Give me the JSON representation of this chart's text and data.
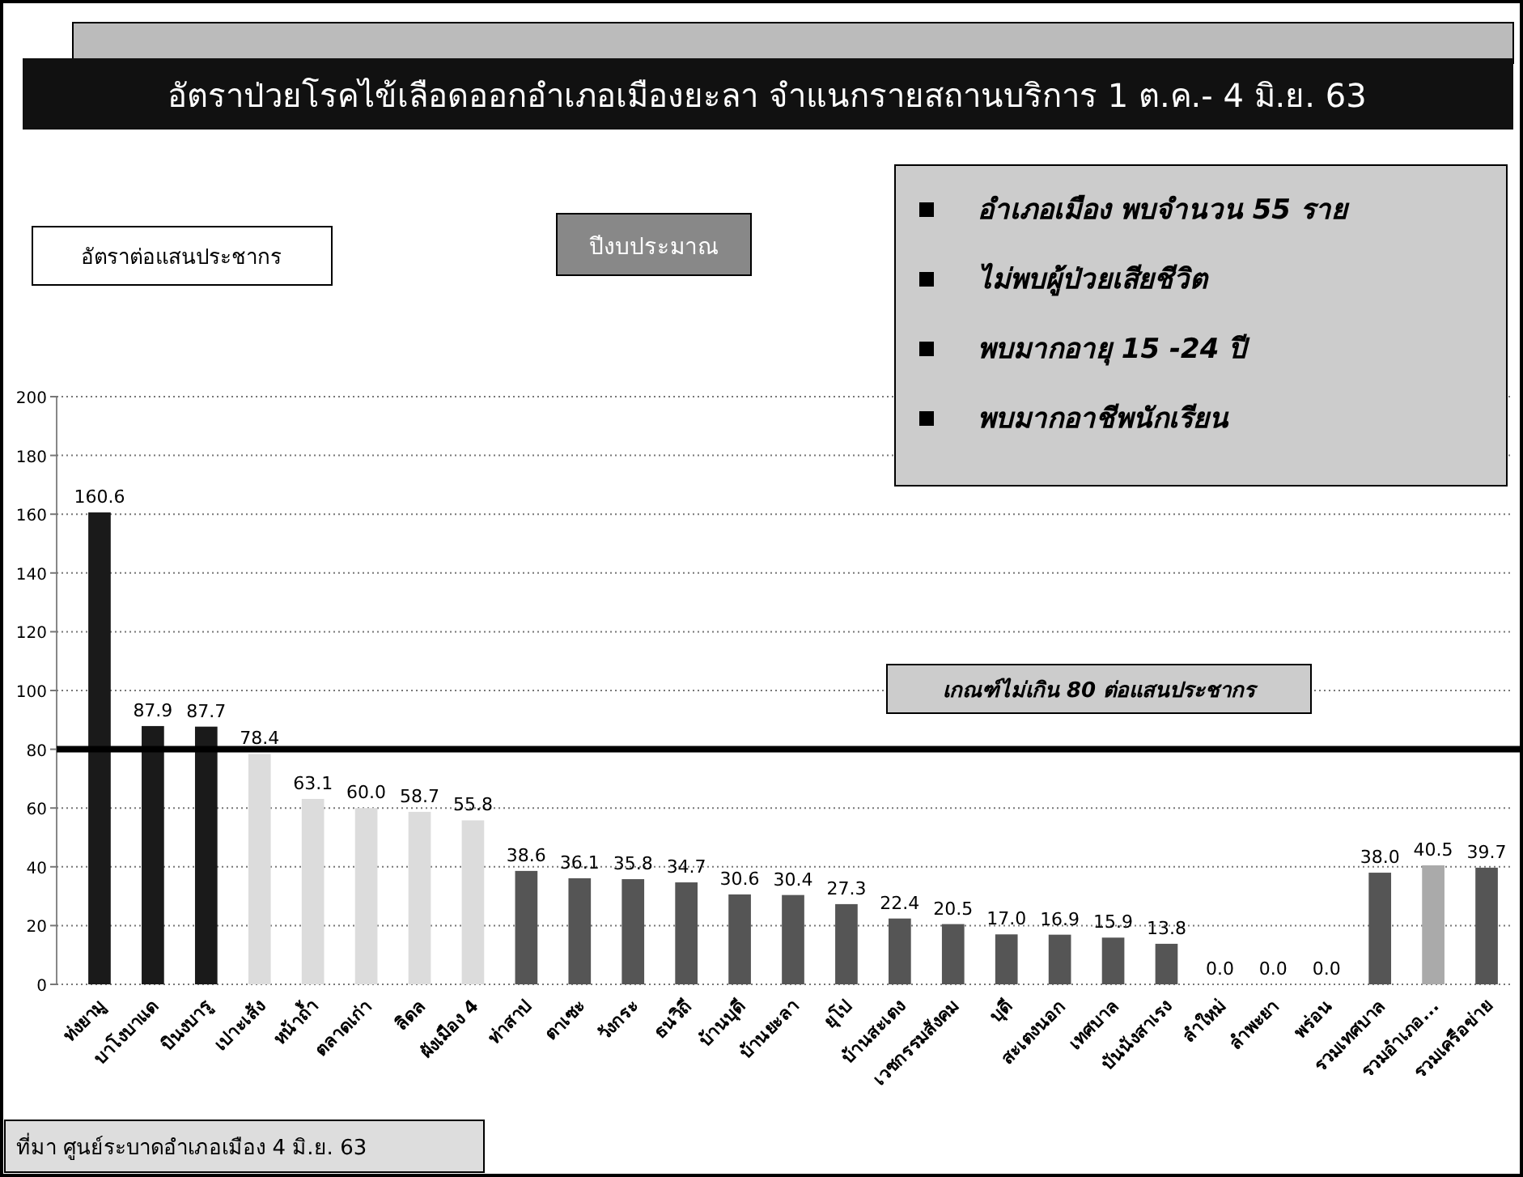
{
  "chart_data": {
    "type": "bar",
    "title": "อัตราป่วยโรคไข้เลือดออกอำเภอเมืองยะลา จำแนกรายสถานบริการ 1 ต.ค.- 4 มิ.ย. 63",
    "categories": [
      "ท่งยามู",
      "บาโงบาแด",
      "บินงบารู",
      "เปาะเส้ง",
      "หน้าถ้ำ",
      "ตลาดเก่า",
      "ลิดล",
      "ผังเมือง 4",
      "ท่าสาป",
      "ตาเซะ",
      "วังกระ",
      "ธนวิถี",
      "บ้านบุดี",
      "บ้านยะลา",
      "ยุโป",
      "บ้านสะเตง",
      "เวชกรรมสังคม",
      "บุดี",
      "สะเตงนอก",
      "เทศบาล",
      "บันนังสาเรง",
      "ลำใหม่",
      "ลำพะยา",
      "พร่อน",
      "รวมเทศบาล",
      "รวมอำเภอ...",
      "รวมเครือข่าย"
    ],
    "values": [
      160.6,
      87.9,
      87.7,
      78.4,
      63.1,
      60.0,
      58.7,
      55.8,
      38.6,
      36.1,
      35.8,
      34.7,
      30.6,
      30.4,
      27.3,
      22.4,
      20.5,
      17.0,
      16.9,
      15.9,
      13.8,
      0.0,
      0.0,
      0.0,
      38.0,
      40.5,
      39.7
    ],
    "value_labels": [
      "160.6",
      "87.9",
      "87.7",
      "78.4",
      "63.1",
      "60.0",
      "58.7",
      "55.8",
      "38.6",
      "36.1",
      "35.8",
      "34.7",
      "30.6",
      "30.4",
      "27.3",
      "22.4",
      "20.5",
      "17.0",
      "16.9",
      "15.9",
      "13.8",
      "0.0",
      "0.0",
      "0.0",
      "38.0",
      "40.5",
      "39.7"
    ],
    "colors": [
      "#1a1a1a",
      "#1a1a1a",
      "#1a1a1a",
      "#dcdcdc",
      "#dcdcdc",
      "#dcdcdc",
      "#dcdcdc",
      "#dcdcdc",
      "#555555",
      "#555555",
      "#555555",
      "#555555",
      "#555555",
      "#555555",
      "#555555",
      "#555555",
      "#555555",
      "#555555",
      "#555555",
      "#555555",
      "#555555",
      "#555555",
      "#555555",
      "#555555",
      "#555555",
      "#aaaaaa",
      "#555555"
    ],
    "ylim": [
      0,
      200
    ],
    "yticks": [
      0,
      20,
      40,
      60,
      80,
      100,
      120,
      140,
      160,
      180,
      200
    ],
    "grid": "y",
    "ref_lines": [
      {
        "axis": "y",
        "value": 80,
        "label": "เกณฑ์ไม่เกิน 80 ต่อแสนประชากร",
        "color": "#000000"
      }
    ],
    "annotations": [
      "ปีงบประมาณ",
      "อำเภอเมือง พบจำนวน 55 ราย",
      "ไม่พบผู้ป่วยเสียชีวิต",
      "พบมากอายุ 15 -24  ปี",
      "พบมากอาชีพนักเรียน",
      "ที่มา ศูนย์ระบาดอำเภอเมือง 4 มิ.ย. 63",
      "อัตราต่อแสนประชากร"
    ]
  }
}
